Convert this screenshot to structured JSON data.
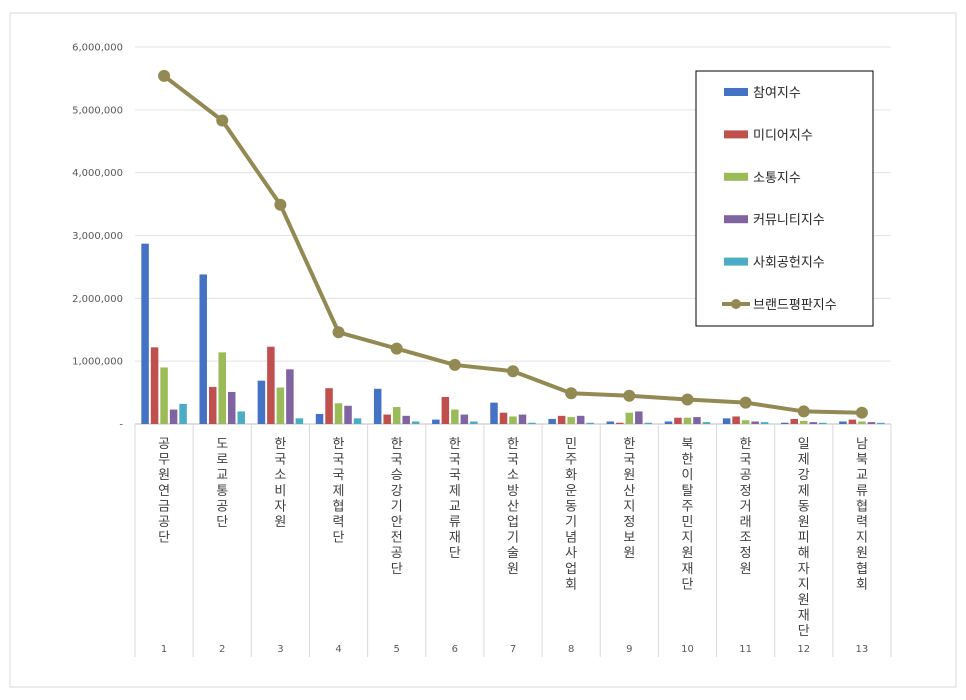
{
  "chart_data": {
    "type": "bar",
    "title": "",
    "xlabel": "",
    "ylabel": "",
    "ylim": [
      0,
      6000000
    ],
    "y_ticks": [
      "-",
      "1,000,000",
      "2,000,000",
      "3,000,000",
      "4,000,000",
      "5,000,000",
      "6,000,000"
    ],
    "grid": true,
    "legend_position": "top-right",
    "categories": [
      "공무원연금공단",
      "도로교통공단",
      "한국소비자원",
      "한국국제협력단",
      "한국승강기안전공단",
      "한국국제교류재단",
      "한국소방산업기술원",
      "민주화운동기념사업회",
      "한국원산지정보원",
      "북한이탈주민지원재단",
      "한국공정거래조정원",
      "일제강제동원피해자지원재단",
      "남북교류협력지원협회"
    ],
    "ranks": [
      "1",
      "2",
      "3",
      "4",
      "5",
      "6",
      "7",
      "8",
      "9",
      "10",
      "11",
      "12",
      "13"
    ],
    "series": [
      {
        "name": "참여지수",
        "kind": "bar",
        "color": "#4472c4",
        "values": [
          2870000,
          2380000,
          690000,
          160000,
          560000,
          70000,
          340000,
          80000,
          40000,
          40000,
          90000,
          20000,
          40000
        ]
      },
      {
        "name": "미디어지수",
        "kind": "bar",
        "color": "#c0504d",
        "values": [
          1220000,
          590000,
          1230000,
          570000,
          150000,
          430000,
          180000,
          130000,
          20000,
          100000,
          120000,
          80000,
          70000
        ]
      },
      {
        "name": "소통지수",
        "kind": "bar",
        "color": "#9bbb59",
        "values": [
          900000,
          1140000,
          580000,
          330000,
          270000,
          230000,
          120000,
          110000,
          180000,
          100000,
          60000,
          50000,
          40000
        ]
      },
      {
        "name": "커뮤니티지수",
        "kind": "bar",
        "color": "#8064a2",
        "values": [
          230000,
          510000,
          870000,
          290000,
          130000,
          150000,
          150000,
          130000,
          200000,
          110000,
          40000,
          30000,
          30000
        ]
      },
      {
        "name": "사회공헌지수",
        "kind": "bar",
        "color": "#4bacc6",
        "values": [
          320000,
          200000,
          90000,
          90000,
          40000,
          40000,
          20000,
          20000,
          20000,
          30000,
          30000,
          20000,
          20000
        ]
      },
      {
        "name": "브랜드평판지수",
        "kind": "line",
        "color": "#938953",
        "values": [
          5540000,
          4830000,
          3490000,
          1460000,
          1200000,
          940000,
          840000,
          490000,
          450000,
          390000,
          340000,
          200000,
          180000
        ]
      }
    ]
  }
}
